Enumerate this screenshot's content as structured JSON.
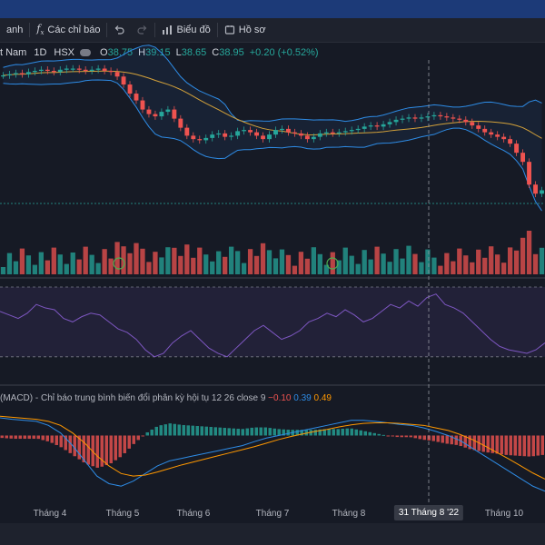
{
  "toolbar": {
    "left_fragment": "anh",
    "indicators_label": "Các chỉ báo",
    "chart_label": "Biểu đồ",
    "profile_label": "Hồ sơ"
  },
  "legend": {
    "symbol_fragment": "t Nam",
    "interval": "1D",
    "exchange": "HSX",
    "open_key": "O",
    "open": "38.75",
    "high_key": "H",
    "high": "39.15",
    "low_key": "L",
    "low": "38.65",
    "close_key": "C",
    "close": "38.95",
    "change": "+0.20 (+0.52%)"
  },
  "macd_legend": {
    "label": "(MACD) - Chỉ báo trung bình biến đổi phân kỳ hội tụ 12 26 close 9",
    "histogram": "−0.10",
    "macd": "0.39",
    "signal": "0.49"
  },
  "xaxis": {
    "months": [
      "Tháng 4",
      "Tháng 5",
      "Tháng 6",
      "Tháng 7",
      "Tháng 8",
      "Tháng 10"
    ],
    "crosshair_label": "31 Tháng 8 '22"
  },
  "colors": {
    "up": "#26a69a",
    "down": "#ef5350",
    "bollinger": "#2e8ce6",
    "ma": "#d4a23a",
    "rsi": "#7e57c2",
    "macd": "#2e8ce6",
    "signal": "#ff9800"
  },
  "icons": {
    "indicators": "fx-icon",
    "undo": "undo-icon",
    "redo": "redo-icon",
    "chart": "chart-icon",
    "profile": "profile-icon",
    "visibility": "eye-icon",
    "event": "earnings-icon"
  },
  "chart_data": {
    "type": "candlestick",
    "series": [
      {
        "name": "price",
        "values": [
          40.6,
          40.7,
          40.8,
          40.7,
          40.9,
          41.0,
          41.1,
          41.0,
          40.9,
          41.1,
          41.2,
          41.2,
          41.1,
          41.0,
          41.1,
          41.2,
          41.0,
          40.9,
          40.5,
          39.8,
          39.0,
          38.4,
          37.6,
          37.2,
          37.0,
          37.4,
          37.6,
          36.8,
          36.0,
          35.3,
          35.0,
          34.9,
          35.1,
          35.4,
          35.5,
          35.2,
          35.3,
          35.7,
          35.8,
          35.6,
          35.3,
          35.0,
          35.4,
          35.8,
          35.9,
          35.6,
          35.5,
          35.3,
          35.0,
          35.2,
          35.5,
          35.6,
          35.5,
          35.6,
          35.7,
          35.8,
          35.9,
          36.1,
          36.2,
          36.1,
          36.3,
          36.5,
          36.7,
          36.8,
          36.9,
          36.8,
          36.9,
          37.0,
          37.1,
          37.0,
          36.9,
          36.8,
          36.7,
          36.5,
          36.2,
          35.9,
          35.6,
          35.4,
          35.2,
          35.0,
          34.6,
          33.8,
          33.0,
          31.0,
          30.2,
          30.5
        ]
      },
      {
        "name": "rsi",
        "values": [
          56,
          54,
          52,
          55,
          60,
          58,
          57,
          52,
          50,
          53,
          55,
          54,
          50,
          46,
          44,
          40,
          34,
          30,
          32,
          38,
          42,
          45,
          40,
          35,
          32,
          30,
          35,
          40,
          45,
          48,
          44,
          40,
          42,
          45,
          50,
          52,
          55,
          53,
          57,
          54,
          50,
          52,
          56,
          60,
          58,
          62,
          59,
          64,
          66,
          60,
          58,
          55,
          50,
          45,
          40,
          36,
          34,
          33,
          32,
          34,
          38
        ]
      },
      {
        "name": "macd",
        "values": [
          0.35,
          0.32,
          0.3,
          0.28,
          0.2,
          0.05,
          -0.2,
          -0.5,
          -0.8,
          -0.95,
          -1.0,
          -0.9,
          -0.75,
          -0.6,
          -0.5,
          -0.45,
          -0.4,
          -0.35,
          -0.3,
          -0.25,
          -0.2,
          -0.12,
          -0.05,
          0.0,
          0.05,
          0.1,
          0.15,
          0.2,
          0.25,
          0.3,
          0.3,
          0.28,
          0.25,
          0.22,
          0.2,
          0.15,
          0.08,
          0.0,
          -0.1,
          -0.25,
          -0.4,
          -0.55,
          -0.7,
          -0.85,
          -1.0,
          -1.1
        ]
      },
      {
        "name": "signal",
        "values": [
          0.38,
          0.36,
          0.34,
          0.32,
          0.28,
          0.2,
          0.05,
          -0.15,
          -0.4,
          -0.6,
          -0.75,
          -0.8,
          -0.78,
          -0.72,
          -0.65,
          -0.58,
          -0.52,
          -0.46,
          -0.4,
          -0.34,
          -0.28,
          -0.22,
          -0.15,
          -0.08,
          -0.02,
          0.03,
          0.08,
          0.12,
          0.17,
          0.21,
          0.24,
          0.25,
          0.25,
          0.24,
          0.22,
          0.2,
          0.15,
          0.1,
          0.02,
          -0.08,
          -0.2,
          -0.33,
          -0.46,
          -0.6,
          -0.74,
          -0.86
        ]
      }
    ],
    "ylim_price": [
      29.5,
      41.8
    ],
    "ylim_rsi": [
      20,
      70
    ],
    "ylim_macd": [
      -1.3,
      0.6
    ]
  }
}
